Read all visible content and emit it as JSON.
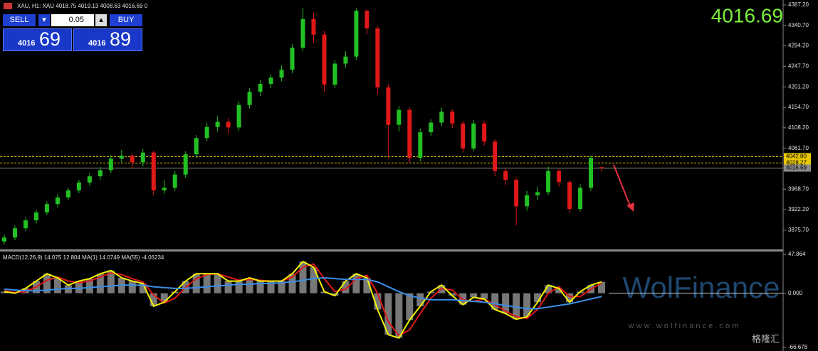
{
  "header": {
    "symbol_info": "XAU, H1:  XAU  4018.75 4019.13 4008.63 4016.69  0",
    "last_price": "4016.69"
  },
  "trade_panel": {
    "sell": "SELL",
    "lot": "0.05",
    "buy": "BUY",
    "bid_big": "4016",
    "bid_small": "69",
    "ask_big": "4016",
    "ask_small": "89"
  },
  "watermark": {
    "brand": "WolFinance",
    "url": "w w w . w o l f i n a n c e . c o m",
    "source": "格隆汇"
  },
  "chart_data": [
    {
      "type": "candlestick",
      "up_color": "#22c022",
      "down_color": "#e01818",
      "open": [
        3850,
        3859,
        3880,
        3898,
        3916,
        3935,
        3950,
        3966,
        3984,
        3998,
        4012,
        4038,
        4045,
        4030,
        4052,
        3966,
        3972,
        4002,
        4048,
        4085,
        4110,
        4122,
        4109,
        4160,
        4190,
        4208,
        4222,
        4240,
        4290,
        4355,
        4320,
        4206,
        4254,
        4270,
        4374,
        4334,
        4200,
        4115,
        4149,
        4040,
        4098,
        4120,
        4145,
        4118,
        4061,
        4118,
        4077,
        4010,
        3990,
        3930,
        3955,
        3962,
        4010,
        3985,
        3924,
        3972,
        4018.75
      ],
      "high": [
        3866,
        3886,
        3905,
        3922,
        3941,
        3957,
        3972,
        3990,
        4005,
        4019,
        4046,
        4058,
        4050,
        4060,
        4056,
        3990,
        4010,
        4055,
        4092,
        4120,
        4135,
        4130,
        4168,
        4198,
        4216,
        4230,
        4250,
        4298,
        4380,
        4370,
        4328,
        4262,
        4282,
        4380,
        4378,
        4340,
        4208,
        4158,
        4155,
        4106,
        4128,
        4154,
        4150,
        4124,
        4126,
        4124,
        4082,
        4018,
        3995,
        3965,
        3975,
        4020,
        4015,
        3990,
        3980,
        4046,
        4019.13
      ],
      "low": [
        3843,
        3853,
        3874,
        3891,
        3910,
        3928,
        3944,
        3960,
        3977,
        3990,
        4005,
        4030,
        4015,
        4020,
        3955,
        3958,
        3965,
        3995,
        4040,
        4078,
        4100,
        4095,
        4102,
        4152,
        4180,
        4198,
        4214,
        4232,
        4282,
        4300,
        4190,
        4198,
        4245,
        4262,
        4320,
        4185,
        4040,
        4100,
        4028,
        4032,
        4090,
        4112,
        4108,
        4052,
        4055,
        4068,
        3998,
        3978,
        3887,
        3920,
        3945,
        3955,
        3975,
        3915,
        3918,
        3965,
        4008.63
      ],
      "close": [
        3859,
        3880,
        3898,
        3916,
        3935,
        3950,
        3966,
        3984,
        3998,
        4012,
        4038,
        4045,
        4030,
        4052,
        3966,
        3972,
        4002,
        4048,
        4085,
        4110,
        4122,
        4109,
        4160,
        4190,
        4208,
        4222,
        4240,
        4290,
        4355,
        4320,
        4206,
        4254,
        4270,
        4374,
        4334,
        4200,
        4115,
        4149,
        4040,
        4098,
        4120,
        4145,
        4118,
        4061,
        4118,
        4077,
        4010,
        3990,
        3930,
        3955,
        3962,
        4010,
        3985,
        3924,
        3972,
        4040,
        4016.69
      ],
      "ylim": [
        3832,
        4398.5
      ],
      "yticks": [
        {
          "value": 4387.2,
          "label": "4387.20"
        },
        {
          "value": 4340.7,
          "label": "4340.70"
        },
        {
          "value": 4294.2,
          "label": "4294.20"
        },
        {
          "value": 4247.7,
          "label": "4247.70"
        },
        {
          "value": 4201.2,
          "label": "4201.20"
        },
        {
          "value": 4154.7,
          "label": "4154.70"
        },
        {
          "value": 4108.2,
          "label": "4108.20"
        },
        {
          "value": 4061.7,
          "label": "4061.70"
        },
        {
          "value": 3968.7,
          "label": "3968.70"
        },
        {
          "value": 3922.2,
          "label": "3922.20"
        },
        {
          "value": 3875.7,
          "label": "3875.70"
        }
      ],
      "price_lines": [
        {
          "value": 4042.8,
          "label": "4042.80",
          "color": "#e8c800"
        },
        {
          "value": 4028.27,
          "label": "4028.27",
          "color": "#e8c800"
        },
        {
          "value": 4016.69,
          "color": "#8a8a8a"
        }
      ]
    },
    {
      "type": "macd",
      "title": "MACD(12,26,9) 14.075 12.804 MA(1) 14.0749 MA(55) -4.06234",
      "series": [
        {
          "style": "histogram",
          "color": "#d8d8d8",
          "values": [
            2,
            0,
            6,
            15,
            24,
            19,
            10,
            15,
            18,
            24,
            28,
            19,
            15,
            12,
            -16,
            -11,
            2,
            15,
            24,
            24,
            24,
            15,
            15,
            19,
            15,
            15,
            15,
            24,
            39,
            32,
            2,
            -3,
            15,
            24,
            19,
            -20,
            -51,
            -55,
            -33,
            -16,
            2,
            10,
            -3,
            -14,
            -5,
            -7,
            -20,
            -25,
            -32,
            -29,
            -11,
            10,
            6,
            -11,
            2,
            10,
            14.075
          ]
        },
        {
          "style": "line",
          "color": "#e01818",
          "values": [
            3,
            1,
            2,
            8,
            16,
            20,
            15,
            13,
            15,
            20,
            25,
            23,
            18,
            14,
            -2,
            -12,
            -6,
            7,
            18,
            23,
            24,
            20,
            16,
            17,
            16,
            15,
            15,
            20,
            32,
            36,
            18,
            2,
            5,
            18,
            22,
            0,
            -35,
            -52,
            -45,
            -25,
            -6,
            6,
            4,
            -8,
            -10,
            -7,
            -14,
            -22,
            -29,
            -31,
            -20,
            0,
            8,
            -4,
            -4,
            5,
            12.804
          ]
        },
        {
          "style": "line",
          "color": "#f4f400",
          "values": [
            2,
            0,
            6,
            15,
            24,
            19,
            10,
            15,
            18,
            24,
            28,
            19,
            15,
            12,
            -16,
            -11,
            2,
            15,
            24,
            24,
            24,
            15,
            15,
            19,
            15,
            15,
            15,
            24,
            39,
            32,
            2,
            -3,
            15,
            24,
            19,
            -20,
            -51,
            -55,
            -33,
            -16,
            2,
            10,
            -3,
            -14,
            -5,
            -7,
            -20,
            -25,
            -32,
            -29,
            -11,
            10,
            6,
            -11,
            2,
            10,
            14.0749
          ]
        },
        {
          "style": "line",
          "color": "#3a8ee8",
          "values": [
            5,
            4,
            3,
            3,
            4,
            5,
            6,
            6,
            7,
            8,
            9,
            10,
            10,
            10,
            8,
            7,
            6,
            6,
            7,
            8,
            9,
            10,
            11,
            11,
            12,
            12,
            13,
            14,
            16,
            18,
            19,
            18,
            17,
            17,
            17,
            14,
            8,
            2,
            -3,
            -6,
            -8,
            -8,
            -8,
            -9,
            -10,
            -11,
            -13,
            -15,
            -17,
            -19,
            -19,
            -17,
            -15,
            -13,
            -10,
            -7,
            -4.06234
          ]
        }
      ],
      "ylim": [
        -66.678,
        47.864
      ],
      "yticks": [
        47.864,
        {
          "value": 0,
          "label": "0.000"
        },
        -66.678
      ]
    }
  ]
}
